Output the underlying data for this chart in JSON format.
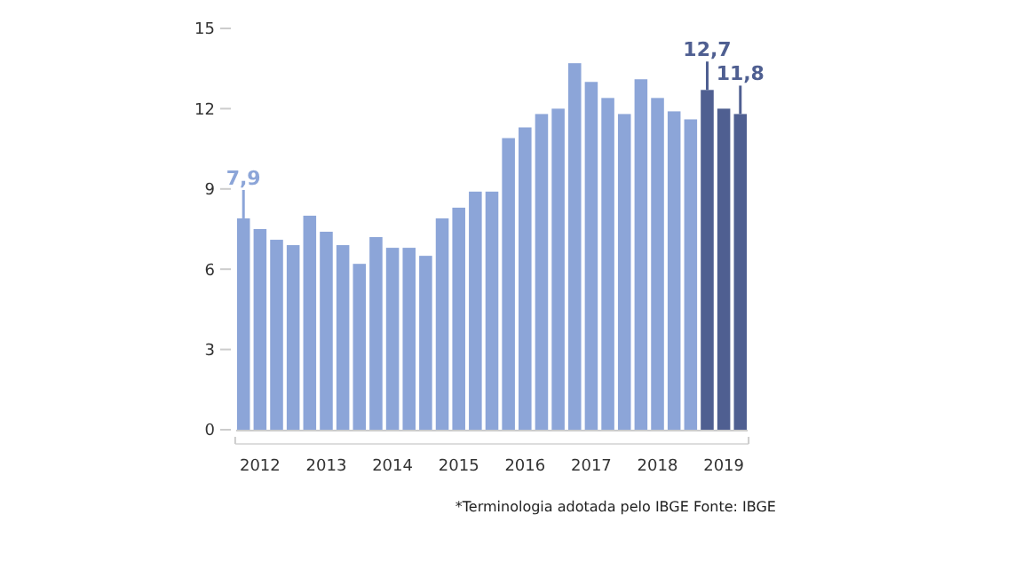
{
  "chart_data": {
    "type": "bar",
    "categories": [
      null,
      "2012",
      null,
      null,
      null,
      "2013",
      null,
      null,
      null,
      "2014",
      null,
      null,
      null,
      "2015",
      null,
      null,
      null,
      "2016",
      null,
      null,
      null,
      "2017",
      null,
      null,
      null,
      "2018",
      null,
      null,
      null,
      "2019",
      null
    ],
    "values": [
      7.9,
      7.5,
      7.1,
      6.9,
      8.0,
      7.4,
      6.9,
      6.2,
      7.2,
      6.8,
      6.8,
      6.5,
      7.9,
      8.3,
      8.9,
      8.9,
      10.9,
      11.3,
      11.8,
      12.0,
      13.7,
      13.0,
      12.4,
      11.8,
      13.1,
      12.4,
      11.9,
      11.6,
      12.7,
      12.0,
      11.8
    ],
    "colors": [
      "#8ca5d8",
      "#8ca5d8",
      "#8ca5d8",
      "#8ca5d8",
      "#8ca5d8",
      "#8ca5d8",
      "#8ca5d8",
      "#8ca5d8",
      "#8ca5d8",
      "#8ca5d8",
      "#8ca5d8",
      "#8ca5d8",
      "#8ca5d8",
      "#8ca5d8",
      "#8ca5d8",
      "#8ca5d8",
      "#8ca5d8",
      "#8ca5d8",
      "#8ca5d8",
      "#8ca5d8",
      "#8ca5d8",
      "#8ca5d8",
      "#8ca5d8",
      "#8ca5d8",
      "#8ca5d8",
      "#8ca5d8",
      "#8ca5d8",
      "#8ca5d8",
      "#4f5f91",
      "#4f5f91",
      "#4f5f91"
    ],
    "value_labels": [
      "7,9",
      null,
      null,
      null,
      null,
      null,
      null,
      null,
      null,
      null,
      null,
      null,
      null,
      null,
      null,
      null,
      null,
      null,
      null,
      null,
      null,
      null,
      null,
      null,
      null,
      null,
      null,
      null,
      "12,7",
      null,
      "11,8"
    ],
    "ylim": [
      0,
      15
    ],
    "yticks": [
      0,
      3,
      6,
      9,
      12,
      15
    ],
    "grid": false,
    "annotations": [
      "*Terminologia adotada pelo IBGE Fonte: IBGE"
    ]
  }
}
